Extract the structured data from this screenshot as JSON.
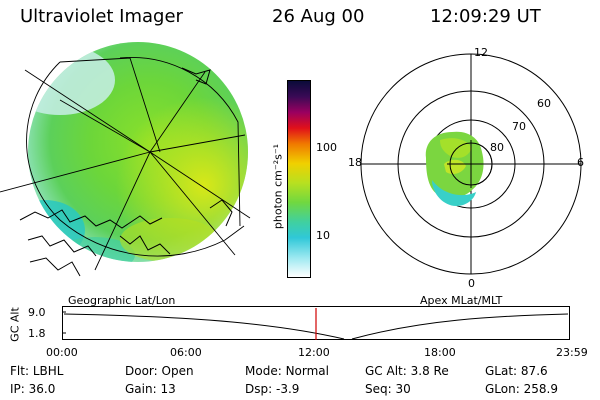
{
  "header": {
    "instrument": "Ultraviolet Imager",
    "date": "26 Aug 00",
    "time": "12:09:29 UT"
  },
  "colorbar": {
    "unit_label": "photon cm⁻²s⁻¹",
    "tick_labels": [
      "100",
      "10"
    ]
  },
  "geo_panel": {
    "label": "Geographic Lat/Lon"
  },
  "polar_panel": {
    "label": "Apex MLat/MLT",
    "mlt_labels": {
      "top": "12",
      "left": "18",
      "right": "6",
      "bottom": "0"
    },
    "lat_labels": [
      "60",
      "70",
      "80"
    ]
  },
  "altitude_strip": {
    "ylabel": "GC Alt",
    "yticks": [
      "9.0",
      "1.8"
    ],
    "xticks": [
      "00:00",
      "06:00",
      "12:00",
      "18:00",
      "23:59"
    ]
  },
  "status": {
    "row1": [
      {
        "key": "Flt:",
        "value": "LBHL"
      },
      {
        "key": "Door:",
        "value": "Open"
      },
      {
        "key": "Mode:",
        "value": "Normal"
      },
      {
        "key": "GC Alt:",
        "value": "3.8 Re"
      },
      {
        "key": "GLat:",
        "value": "87.6"
      }
    ],
    "row2": [
      {
        "key": "IP:",
        "value": "36.0"
      },
      {
        "key": "Gain:",
        "value": "13"
      },
      {
        "key": "Dsp:",
        "value": "-3.9"
      },
      {
        "key": "Seq:",
        "value": "30"
      },
      {
        "key": "GLon:",
        "value": "258.9"
      }
    ]
  }
}
